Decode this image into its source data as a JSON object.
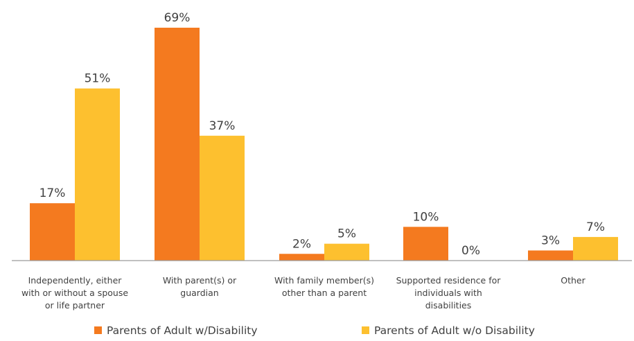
{
  "chart_data": {
    "type": "bar",
    "categories": [
      [
        "Independently, either",
        "with or without a spouse",
        "or life partner"
      ],
      [
        "With parent(s) or",
        "guardian"
      ],
      [
        "With family member(s)",
        "other than a parent"
      ],
      [
        "Supported residence for",
        "individuals with",
        "disabilities"
      ],
      [
        "Other"
      ]
    ],
    "series": [
      {
        "name": "Parents of Adult w/Disability",
        "color": "#F47A1F",
        "values": [
          17,
          69,
          2,
          10,
          3
        ],
        "labels": [
          "17%",
          "69%",
          "2%",
          "10%",
          "3%"
        ]
      },
      {
        "name": "Parents of Adult w/o Disability",
        "color": "#FDC02F",
        "values": [
          51,
          37,
          5,
          0,
          7
        ],
        "labels": [
          "51%",
          "37%",
          "5%",
          "0%",
          "7%"
        ]
      }
    ],
    "ylim": [
      0,
      70
    ],
    "grid": false,
    "legend_position": "bottom"
  }
}
